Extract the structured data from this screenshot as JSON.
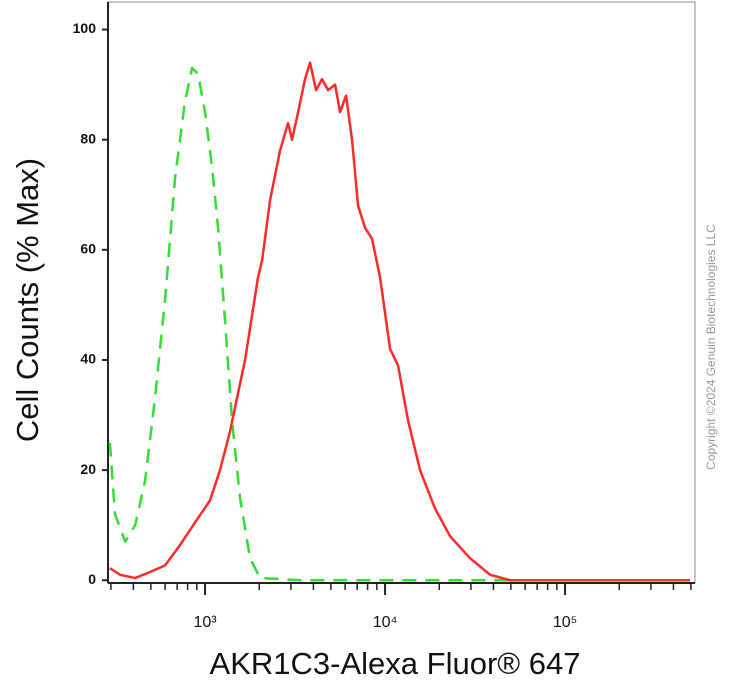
{
  "chart_data": {
    "type": "line",
    "x_label": "AKR1C3-Alexa Fluor® 647",
    "y_label": "Cell Counts (% Max)",
    "annotation": "Copyright ©2024 Genuin Biotechnologies LLC",
    "x_scale": "log",
    "xlim": [
      289,
      527000
    ],
    "ylim": [
      -0.5,
      105
    ],
    "xticks": [
      {
        "value": 1000,
        "label": "10³"
      },
      {
        "value": 10000,
        "label": "10⁴"
      },
      {
        "value": 100000,
        "label": "10⁵"
      }
    ],
    "xminor_ticks": [
      300,
      400,
      500,
      600,
      700,
      800,
      900,
      2000,
      3000,
      4000,
      5000,
      6000,
      7000,
      8000,
      9000,
      20000,
      30000,
      40000,
      50000,
      60000,
      70000,
      80000,
      90000,
      200000,
      300000,
      400000,
      500000
    ],
    "yticks": [
      0,
      20,
      40,
      60,
      80,
      100
    ],
    "series": [
      {
        "color": "#33dd33",
        "dashed": true,
        "x": [
          296,
          316,
          360,
          409,
          464,
          527,
          600,
          681,
          774,
          847,
          914,
          1000,
          1094,
          1181,
          1292,
          1413,
          1564,
          1778,
          2021,
          3375,
          494000
        ],
        "values": [
          25,
          12,
          7,
          10,
          18,
          33,
          51,
          73,
          87,
          93,
          92,
          85,
          75,
          64,
          47,
          29,
          15,
          4,
          0.4,
          0,
          0
        ]
      },
      {
        "color": "#ff2a2a",
        "dashed": false,
        "x": [
          296,
          337,
          409,
          495,
          600,
          727,
          880,
          1066,
          1211,
          1376,
          1668,
          1969,
          2073,
          2297,
          2610,
          2890,
          3043,
          3288,
          3594,
          3831,
          4137,
          4467,
          4823,
          5275,
          5623,
          6072,
          6555,
          7079,
          7743,
          8467,
          9380,
          10660,
          11810,
          13420,
          15640,
          18960,
          22970,
          29660,
          38310,
          49480,
          494000
        ],
        "values": [
          2.2,
          1,
          0.4,
          1.5,
          2.7,
          6.4,
          10.5,
          14.5,
          20,
          27,
          40,
          55,
          58,
          69,
          78,
          83,
          80,
          85,
          91,
          94,
          89,
          91,
          89,
          90,
          85,
          88,
          80,
          68,
          64,
          62,
          55,
          42,
          39,
          29,
          20,
          13,
          8,
          4,
          1,
          0,
          0
        ]
      }
    ]
  }
}
